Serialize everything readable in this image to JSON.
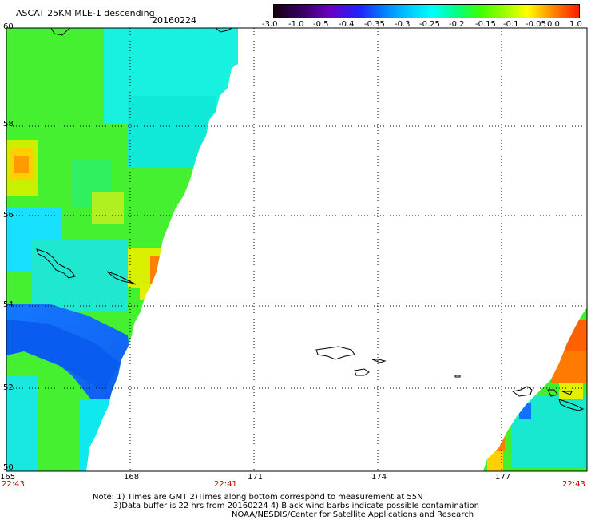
{
  "title": "ASCAT 25KM MLE-1 descending",
  "date": "20160224",
  "colorbar": {
    "labels": [
      "-3.0",
      "-1.0",
      "-0.5",
      "-0.4",
      "-0.35",
      "-0.3",
      "-0.25",
      "-0.2",
      "-0.15",
      "-0.1",
      "-0.05",
      "0.0",
      "1.0"
    ],
    "colors": [
      "#1a0010",
      "#3a006a",
      "#6a00c0",
      "#2020ff",
      "#0080ff",
      "#00c8ff",
      "#00ffff",
      "#00ff80",
      "#40ff00",
      "#a0ff00",
      "#ffff00",
      "#ff8000",
      "#ff2000"
    ]
  },
  "lat_labels": [
    "60",
    "58",
    "56",
    "54",
    "52",
    "50"
  ],
  "lon_labels": [
    "165",
    "168",
    "171",
    "174",
    "177"
  ],
  "time_labels": {
    "left": "22:43",
    "middle": "22:41",
    "right": "22:43"
  },
  "notes": {
    "line1": "Note: 1) Times are GMT 2)Times along bottom correspond to measurement at 55N",
    "line2": "3)Data buffer is 22 hrs from 20160224 4) Black wind barbs indicate possible contamination",
    "line3": "NOAA/NESDIS/Center for Satellite Applications and Research"
  },
  "colors": {
    "swath_green": "#40f020",
    "swath_cyan": "#00f0e0",
    "swath_blue": "#1070ff",
    "hot_orange": "#ff7a00"
  }
}
